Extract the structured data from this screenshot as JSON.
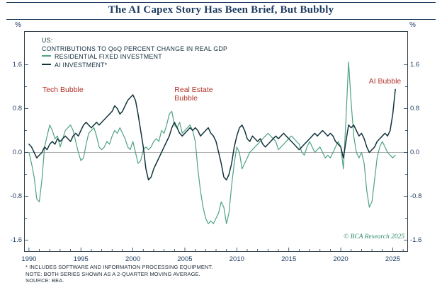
{
  "title": "The AI Capex Story Has Been Brief, But Bubbly",
  "legend": {
    "region": "US:",
    "subtitle": "CONTRIBUTIONS TO QoQ PERCENT CHANGE IN REAL GDP",
    "items": [
      {
        "label": "RESIDENTIAL FIXED INVESTMENT",
        "color": "#4fa283"
      },
      {
        "label": "AI INVESTMENT*",
        "color": "#12343b"
      }
    ]
  },
  "copyright": "© BCA Research 2025",
  "footnotes": [
    "* INCLUDES SOFTWARE AND INFORMATION PROCESSING EQUIPMENT.",
    "NOTE: BOTH SERIES SHOWN AS A 2-QUARTER MOVING AVERAGE.",
    "SOURCE: BEA."
  ],
  "chart_data": {
    "type": "line",
    "title": "The AI Capex Story Has Been Brief, But Bubbly",
    "unit_left": "%",
    "unit_right": "%",
    "x_start": 1990,
    "x_step": 0.25,
    "x_ticks": [
      1990,
      1995,
      2000,
      2005,
      2010,
      2015,
      2020,
      2025
    ],
    "y_ticks": [
      1.6,
      0.8,
      0.0,
      -0.8,
      -1.6
    ],
    "xlim": [
      1989.6,
      2026.4
    ],
    "ylim": [
      -1.8,
      2.2
    ],
    "zero_line": true,
    "legend_position": "top-left",
    "colors": {
      "annotation": "#b2322a",
      "axis": "#1c3a5e",
      "zero_line": "#8f8f8f",
      "border": "#2f3e48"
    },
    "annotations": [
      {
        "text": "Tech Bubble",
        "x": 1991.3,
        "y": 1.22
      },
      {
        "text": "Real Estate\nBubble",
        "x": 2004.0,
        "y": 1.22
      },
      {
        "text": "AI Bubble",
        "x": 2022.7,
        "y": 1.38
      }
    ],
    "series": [
      {
        "name": "RESIDENTIAL FIXED INVESTMENT",
        "color": "#4fa283",
        "values": [
          0.0,
          -0.2,
          -0.45,
          -0.85,
          -0.9,
          -0.5,
          0.1,
          0.3,
          0.5,
          0.4,
          0.25,
          0.3,
          0.1,
          0.25,
          0.4,
          0.45,
          0.5,
          0.4,
          0.2,
          0.0,
          -0.15,
          -0.1,
          0.15,
          0.35,
          0.4,
          0.45,
          0.3,
          0.1,
          0.05,
          0.1,
          0.2,
          0.15,
          0.3,
          0.4,
          0.35,
          0.45,
          0.35,
          0.25,
          0.1,
          0.05,
          0.2,
          0.0,
          -0.2,
          -0.15,
          0.05,
          0.1,
          0.05,
          0.1,
          0.2,
          0.25,
          0.2,
          0.4,
          0.35,
          0.5,
          0.7,
          0.75,
          0.5,
          0.45,
          0.55,
          0.35,
          0.4,
          0.45,
          0.5,
          0.4,
          0.2,
          -0.3,
          -0.7,
          -1.0,
          -1.2,
          -1.3,
          -1.25,
          -1.3,
          -1.2,
          -1.1,
          -0.9,
          -1.0,
          -1.3,
          -1.1,
          -0.6,
          -0.2,
          0.1,
          0.0,
          -0.3,
          -0.2,
          -0.1,
          0.0,
          0.05,
          0.1,
          0.15,
          0.2,
          0.25,
          0.3,
          0.35,
          0.3,
          0.25,
          0.2,
          0.05,
          0.1,
          0.15,
          0.2,
          0.25,
          0.3,
          0.25,
          0.2,
          0.15,
          0.0,
          -0.05,
          0.1,
          0.2,
          0.1,
          0.0,
          0.05,
          0.1,
          0.0,
          -0.1,
          -0.05,
          -0.1,
          0.0,
          0.1,
          0.2,
          0.1,
          -0.3,
          0.6,
          1.65,
          0.9,
          0.3,
          0.0,
          -0.1,
          0.0,
          -0.2,
          -0.7,
          -1.0,
          -0.9,
          -0.5,
          -0.1,
          0.1,
          0.2,
          0.1,
          0.0,
          -0.05,
          -0.1,
          -0.05
        ]
      },
      {
        "name": "AI INVESTMENT*",
        "color": "#12343b",
        "values": [
          0.15,
          0.1,
          0.0,
          -0.1,
          -0.05,
          0.0,
          0.1,
          0.05,
          0.15,
          0.2,
          0.15,
          0.25,
          0.2,
          0.25,
          0.3,
          0.25,
          0.2,
          0.3,
          0.35,
          0.3,
          0.4,
          0.5,
          0.55,
          0.5,
          0.45,
          0.5,
          0.55,
          0.5,
          0.55,
          0.6,
          0.65,
          0.7,
          0.75,
          0.85,
          0.8,
          0.7,
          0.75,
          0.85,
          0.95,
          1.0,
          1.05,
          0.95,
          0.7,
          0.4,
          0.1,
          -0.3,
          -0.5,
          -0.45,
          -0.3,
          -0.2,
          -0.1,
          0.0,
          0.1,
          0.2,
          0.3,
          0.45,
          0.55,
          0.45,
          0.35,
          0.3,
          0.35,
          0.4,
          0.45,
          0.4,
          0.45,
          0.4,
          0.3,
          0.35,
          0.4,
          0.45,
          0.35,
          0.3,
          0.2,
          0.0,
          -0.2,
          -0.45,
          -0.5,
          -0.4,
          -0.2,
          0.1,
          0.3,
          0.45,
          0.5,
          0.4,
          0.25,
          0.2,
          0.3,
          0.25,
          0.2,
          0.25,
          0.15,
          0.1,
          0.15,
          0.2,
          0.25,
          0.3,
          0.25,
          0.3,
          0.35,
          0.3,
          0.25,
          0.2,
          0.15,
          0.1,
          0.05,
          0.1,
          0.15,
          0.2,
          0.25,
          0.3,
          0.35,
          0.3,
          0.35,
          0.4,
          0.35,
          0.3,
          0.35,
          0.3,
          0.2,
          0.15,
          0.1,
          -0.1,
          0.2,
          0.5,
          0.45,
          0.5,
          0.4,
          0.3,
          0.35,
          0.25,
          0.1,
          0.0,
          0.05,
          0.1,
          0.2,
          0.25,
          0.3,
          0.35,
          0.3,
          0.4,
          0.7,
          1.15
        ]
      }
    ]
  }
}
